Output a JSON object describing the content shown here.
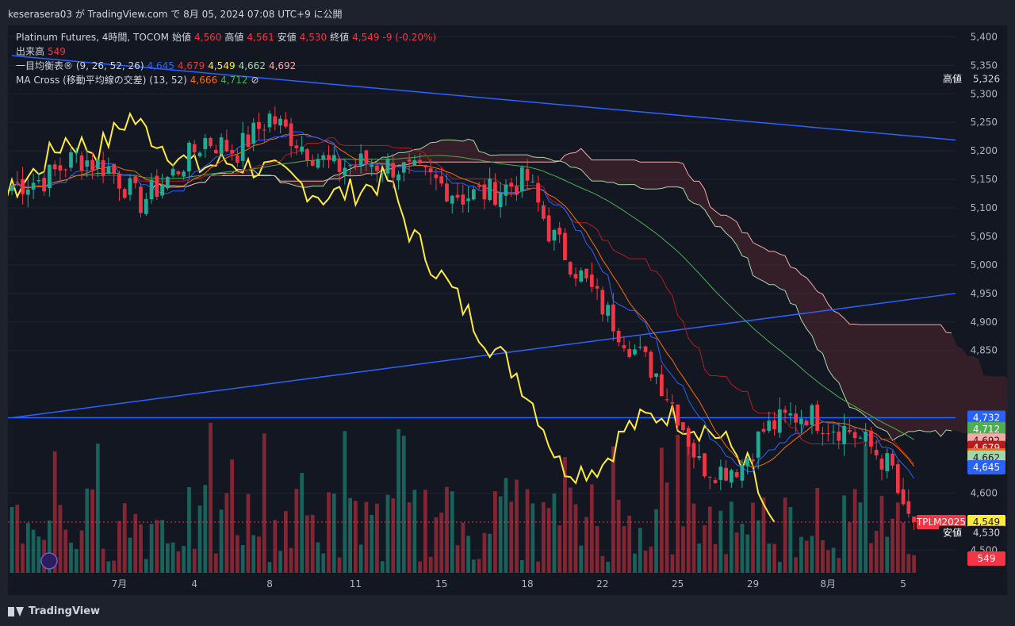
{
  "header": {
    "title": "keserasera03 が TradingView.com で 8月 05, 2024 07:08 UTC+9 に公開"
  },
  "legend": {
    "symbol": "Platinum Futures, 4時間, TOCOM",
    "open_label": "始値",
    "open": "4,560",
    "high_label": "高値",
    "high": "4,561",
    "low_label": "安値",
    "low": "4,530",
    "close_label": "終値",
    "close": "4,549",
    "change": "-9 (-0.20%)",
    "volume_label": "出来高",
    "volume": "549",
    "ichimoku_label": "一目均衡表® (9, 26, 52, 26)",
    "ichimoku_values": [
      "4,645",
      "4,679",
      "4,549",
      "4,662",
      "4,692"
    ],
    "ma_label": "MA Cross (移動平均線の交差) (13, 52)",
    "ma_values": [
      "4,666",
      "4,712"
    ],
    "ma_icon": "⊘"
  },
  "footer": {
    "brand": "TradingView"
  },
  "colors": {
    "up": "#22ab94",
    "down": "#f23645",
    "volUp": "#22ab94",
    "volDown": "#f23645",
    "tenkan": "#2962ff",
    "kijun": "#b71c1c",
    "chikou": "#ffeb3b",
    "spanA": "#a5d6a7",
    "spanB": "#f7a9a8",
    "maFast": "#ff6d00",
    "maSlow": "#4caf50",
    "trendline": "#2962ff"
  },
  "chart_data": {
    "type": "candlestick",
    "symbol": "TPLM2025",
    "ylim": [
      4460,
      5420
    ],
    "y_ticks": [
      "5,400",
      "5,350",
      "5,300",
      "5,250",
      "5,200",
      "5,150",
      "5,100",
      "5,050",
      "5,000",
      "4,950",
      "4,900",
      "4,850",
      "4,600",
      "4,500"
    ],
    "y_tick_values": [
      5400,
      5350,
      5300,
      5250,
      5200,
      5150,
      5100,
      5050,
      5000,
      4950,
      4900,
      4850,
      4600,
      4500
    ],
    "x_labels": [
      "7月",
      "4",
      "8",
      "11",
      "15",
      "18",
      "22",
      "25",
      "29",
      "8月",
      "5"
    ],
    "x_label_index": [
      20,
      34,
      48,
      64,
      80,
      96,
      110,
      124,
      138,
      152,
      166
    ],
    "price_labels": [
      {
        "label": "高値",
        "text": "5,326",
        "value": 5326,
        "color": "#131722",
        "fg": "#d1d4dc"
      },
      {
        "label": "",
        "text": "4,732",
        "value": 4732,
        "color": "#2962ff",
        "fg": "#ffffff"
      },
      {
        "label": "",
        "text": "4,712",
        "value": 4712,
        "color": "#4caf50",
        "fg": "#ffffff"
      },
      {
        "label": "",
        "text": "4,692",
        "value": 4692,
        "color": "#f7a9a8",
        "fg": "#131722"
      },
      {
        "label": "",
        "text": "4,679",
        "value": 4679,
        "color": "#b71c1c",
        "fg": "#ffffff"
      },
      {
        "label": "",
        "text": "4,666",
        "value": 4666,
        "color": "#ff6d00",
        "fg": "#ffffff"
      },
      {
        "label": "",
        "text": "4,662",
        "value": 4662,
        "color": "#a5d6a7",
        "fg": "#131722"
      },
      {
        "label": "",
        "text": "4,645",
        "value": 4645,
        "color": "#2962ff",
        "fg": "#ffffff"
      },
      {
        "label": "TPLM2025",
        "text": "4,549",
        "value": 4549,
        "color": "#f23645",
        "fg": "#ffffff"
      },
      {
        "label": "",
        "text": "4,549",
        "value": 4549,
        "color": "#ffeb3b",
        "fg": "#131722"
      },
      {
        "label": "安値",
        "text": "4,530",
        "value": 4530,
        "color": "#131722",
        "fg": "#d1d4dc"
      },
      {
        "label": "",
        "text": "549",
        "value": null,
        "color": "#f23645",
        "fg": "#ffffff"
      }
    ],
    "horizontal_line": 4732,
    "trendlines": [
      {
        "from": [
          0,
          5367
        ],
        "to": [
          176,
          5219
        ]
      },
      {
        "from": [
          0,
          4732
        ],
        "to": [
          176,
          4950
        ]
      }
    ],
    "close_anchors": [
      [
        0,
        5140
      ],
      [
        6,
        5150
      ],
      [
        12,
        5190
      ],
      [
        18,
        5170
      ],
      [
        24,
        5110
      ],
      [
        30,
        5160
      ],
      [
        36,
        5220
      ],
      [
        42,
        5200
      ],
      [
        48,
        5260
      ],
      [
        54,
        5210
      ],
      [
        60,
        5170
      ],
      [
        66,
        5180
      ],
      [
        72,
        5170
      ],
      [
        78,
        5150
      ],
      [
        84,
        5120
      ],
      [
        90,
        5130
      ],
      [
        96,
        5150
      ],
      [
        100,
        5060
      ],
      [
        106,
        4980
      ],
      [
        112,
        4900
      ],
      [
        116,
        4850
      ],
      [
        120,
        4810
      ],
      [
        124,
        4740
      ],
      [
        128,
        4650
      ],
      [
        132,
        4640
      ],
      [
        136,
        4650
      ],
      [
        140,
        4710
      ],
      [
        144,
        4730
      ],
      [
        148,
        4740
      ],
      [
        152,
        4720
      ],
      [
        156,
        4710
      ],
      [
        160,
        4680
      ],
      [
        164,
        4640
      ],
      [
        166,
        4560
      ],
      [
        168,
        4549
      ]
    ],
    "volume_max": 560
  }
}
